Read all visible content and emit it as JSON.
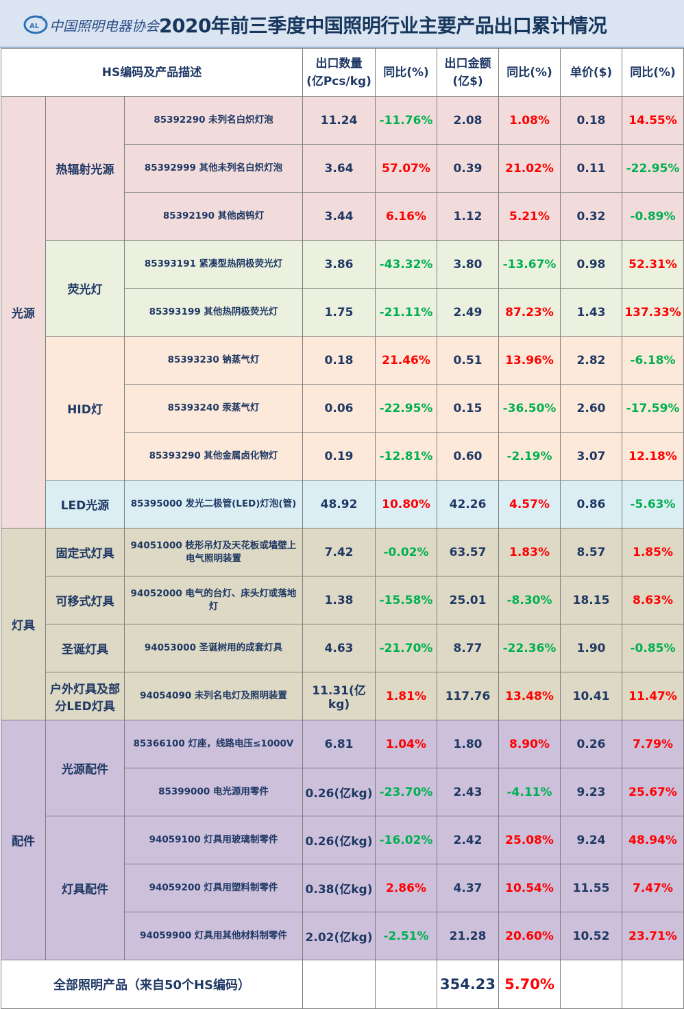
{
  "header": {
    "org_name": "中国照明电器协会",
    "logo_text": "CALI",
    "title": "2020年前三季度中国照明行业主要产品出口累计情况"
  },
  "columns": {
    "desc": "HS编码及产品描述",
    "qty": "出口数量\n(亿Pcs/kg)",
    "qty_yoy": "同比(%)",
    "amount": "出口金额\n(亿$)",
    "amount_yoy": "同比(%)",
    "price": "单价($)",
    "price_yoy": "同比(%)"
  },
  "sections": {
    "light_source": "光源",
    "lamps": "灯具",
    "accessories": "配件"
  },
  "categories": {
    "thermal": "热辐射光源",
    "fluorescent": "荧光灯",
    "hid": "HID灯",
    "led": "LED光源",
    "fixed": "固定式灯具",
    "portable": "可移式灯具",
    "christmas": "圣诞灯具",
    "outdoor": "户外灯具及部分LED灯具",
    "source_parts": "光源配件",
    "lamp_parts": "灯具配件"
  },
  "rows": [
    {
      "desc": "85392290 未列名白炽灯泡",
      "qty": "11.24",
      "qty_yoy": "-11.76%",
      "amount": "2.08",
      "amount_yoy": "1.08%",
      "price": "0.18",
      "price_yoy": "14.55%"
    },
    {
      "desc": "85392999 其他未列名白炽灯泡",
      "qty": "3.64",
      "qty_yoy": "57.07%",
      "amount": "0.39",
      "amount_yoy": "21.02%",
      "price": "0.11",
      "price_yoy": "-22.95%"
    },
    {
      "desc": "85392190 其他卤钨灯",
      "qty": "3.44",
      "qty_yoy": "6.16%",
      "amount": "1.12",
      "amount_yoy": "5.21%",
      "price": "0.32",
      "price_yoy": "-0.89%"
    },
    {
      "desc": "85393191 紧凑型热阴极荧光灯",
      "qty": "3.86",
      "qty_yoy": "-43.32%",
      "amount": "3.80",
      "amount_yoy": "-13.67%",
      "price": "0.98",
      "price_yoy": "52.31%"
    },
    {
      "desc": "85393199 其他热阴极荧光灯",
      "qty": "1.75",
      "qty_yoy": "-21.11%",
      "amount": "2.49",
      "amount_yoy": "87.23%",
      "price": "1.43",
      "price_yoy": "137.33%"
    },
    {
      "desc": "85393230 钠蒸气灯",
      "qty": "0.18",
      "qty_yoy": "21.46%",
      "amount": "0.51",
      "amount_yoy": "13.96%",
      "price": "2.82",
      "price_yoy": "-6.18%"
    },
    {
      "desc": "85393240 汞蒸气灯",
      "qty": "0.06",
      "qty_yoy": "-22.95%",
      "amount": "0.15",
      "amount_yoy": "-36.50%",
      "price": "2.60",
      "price_yoy": "-17.59%"
    },
    {
      "desc": "85393290 其他金属卤化物灯",
      "qty": "0.19",
      "qty_yoy": "-12.81%",
      "amount": "0.60",
      "amount_yoy": "-2.19%",
      "price": "3.07",
      "price_yoy": "12.18%"
    },
    {
      "desc": "85395000 发光二极管(LED)灯泡(管)",
      "qty": "48.92",
      "qty_yoy": "10.80%",
      "amount": "42.26",
      "amount_yoy": "4.57%",
      "price": "0.86",
      "price_yoy": "-5.63%"
    },
    {
      "desc": "94051000 枝形吊灯及天花板或墙壁上电气照明装置",
      "qty": "7.42",
      "qty_yoy": "-0.02%",
      "amount": "63.57",
      "amount_yoy": "1.83%",
      "price": "8.57",
      "price_yoy": "1.85%"
    },
    {
      "desc": "94052000 电气的台灯、床头灯或落地灯",
      "qty": "1.38",
      "qty_yoy": "-15.58%",
      "amount": "25.01",
      "amount_yoy": "-8.30%",
      "price": "18.15",
      "price_yoy": "8.63%"
    },
    {
      "desc": "94053000 圣诞树用的成套灯具",
      "qty": "4.63",
      "qty_yoy": "-21.70%",
      "amount": "8.77",
      "amount_yoy": "-22.36%",
      "price": "1.90",
      "price_yoy": "-0.85%"
    },
    {
      "desc": "94054090 未列名电灯及照明装置",
      "qty": "11.31(亿kg)",
      "qty_yoy": "1.81%",
      "amount": "117.76",
      "amount_yoy": "13.48%",
      "price": "10.41",
      "price_yoy": "11.47%"
    },
    {
      "desc": "85366100 灯座，线路电压≤1000V",
      "qty": "6.81",
      "qty_yoy": "1.04%",
      "amount": "1.80",
      "amount_yoy": "8.90%",
      "price": "0.26",
      "price_yoy": "7.79%"
    },
    {
      "desc": "85399000 电光源用零件",
      "qty": "0.26(亿kg)",
      "qty_yoy": "-23.70%",
      "amount": "2.43",
      "amount_yoy": "-4.11%",
      "price": "9.23",
      "price_yoy": "25.67%"
    },
    {
      "desc": "94059100 灯具用玻璃制零件",
      "qty": "0.26(亿kg)",
      "qty_yoy": "-16.02%",
      "amount": "2.42",
      "amount_yoy": "25.08%",
      "price": "9.24",
      "price_yoy": "48.94%"
    },
    {
      "desc": "94059200 灯具用塑料制零件",
      "qty": "0.38(亿kg)",
      "qty_yoy": "2.86%",
      "amount": "4.37",
      "amount_yoy": "10.54%",
      "price": "11.55",
      "price_yoy": "7.47%"
    },
    {
      "desc": "94059900 灯具用其他材料制零件",
      "qty": "2.02(亿kg)",
      "qty_yoy": "-2.51%",
      "amount": "21.28",
      "amount_yoy": "20.60%",
      "price": "10.52",
      "price_yoy": "23.71%"
    }
  ],
  "total": {
    "label": "全部照明产品（来自50个HS编码）",
    "amount": "354.23",
    "amount_yoy": "5.70%"
  },
  "colors": {
    "positive_change": "#ff0000",
    "negative_change": "#00b050",
    "text": "#1f3864",
    "header_band": "#dbe5f1",
    "thermal_bg": "#f2dcdb",
    "fluorescent_bg": "#ebf1de",
    "hid_bg": "#fde9d9",
    "led_bg": "#dbeef4",
    "lamps_bg": "#ddd9c4",
    "accessories_bg": "#ccc0da"
  }
}
